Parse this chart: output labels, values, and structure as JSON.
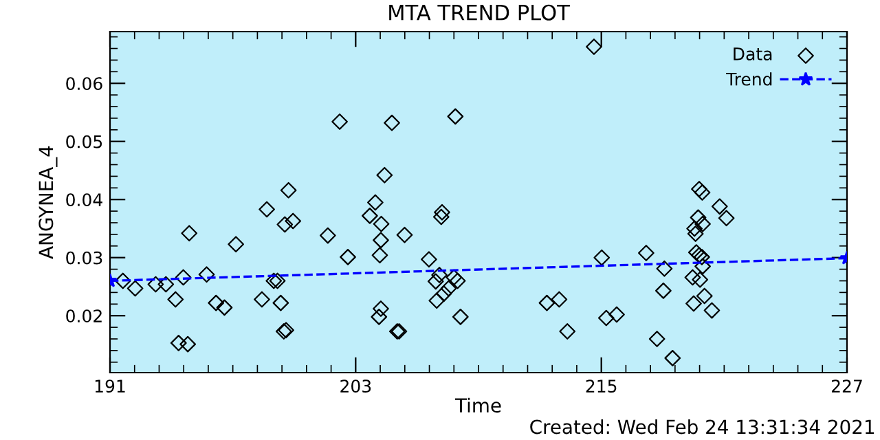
{
  "chart_data": {
    "type": "scatter",
    "title": "MTA TREND PLOT",
    "xlabel": "Time",
    "ylabel": "ANGYNEA_4",
    "xlim": [
      191,
      227
    ],
    "xticks": [
      191,
      203,
      215,
      227
    ],
    "ylim": [
      0.0102,
      0.0689
    ],
    "yticks": [
      {
        "value": 0.02,
        "label": "0.02"
      },
      {
        "value": 0.03,
        "label": "0.03"
      },
      {
        "value": 0.04,
        "label": "0.04"
      },
      {
        "value": 0.05,
        "label": "0.05"
      },
      {
        "value": 0.06,
        "label": "0.06"
      }
    ],
    "grid": false,
    "legend": "top right",
    "series": [
      {
        "name": "Data",
        "marker": "diamond",
        "color": "#000000",
        "x": [
          191.63,
          192.23,
          193.23,
          193.73,
          194.2,
          194.35,
          194.58,
          194.8,
          194.87,
          195.72,
          196.18,
          196.59,
          197.15,
          198.42,
          198.66,
          199.0,
          199.18,
          199.34,
          199.49,
          199.6,
          199.54,
          199.72,
          199.94,
          201.64,
          202.22,
          202.62,
          203.69,
          203.96,
          204.14,
          204.23,
          204.18,
          204.23,
          204.25,
          204.41,
          204.77,
          205.03,
          205.12,
          205.39,
          206.58,
          206.91,
          206.96,
          207.09,
          207.18,
          207.22,
          207.31,
          207.54,
          207.8,
          207.87,
          207.98,
          208.12,
          214.64,
          215.02,
          212.34,
          212.94,
          213.34,
          215.24,
          215.75,
          217.19,
          217.72,
          218.03,
          218.08,
          218.48,
          219.51,
          219.46,
          219.55,
          219.6,
          219.73,
          219.78,
          219.93,
          219.95,
          219.64,
          219.78,
          219.91,
          219.95,
          219.82,
          220.04,
          220.4,
          220.78,
          221.11
        ],
        "values": [
          0.026,
          0.0247,
          0.0254,
          0.0254,
          0.0228,
          0.0153,
          0.0266,
          0.0151,
          0.0342,
          0.0271,
          0.0222,
          0.0214,
          0.0323,
          0.0228,
          0.0383,
          0.026,
          0.026,
          0.0222,
          0.0173,
          0.0175,
          0.0357,
          0.0416,
          0.0363,
          0.0338,
          0.0534,
          0.0301,
          0.0372,
          0.0395,
          0.0198,
          0.0212,
          0.0304,
          0.033,
          0.0358,
          0.0442,
          0.0532,
          0.0173,
          0.0173,
          0.0339,
          0.0297,
          0.0259,
          0.0226,
          0.027,
          0.037,
          0.0378,
          0.0238,
          0.0247,
          0.0266,
          0.0543,
          0.026,
          0.0198,
          0.0663,
          0.03,
          0.0222,
          0.0228,
          0.0173,
          0.0196,
          0.0202,
          0.0308,
          0.016,
          0.0243,
          0.0281,
          0.0127,
          0.0221,
          0.0266,
          0.035,
          0.0341,
          0.0369,
          0.0418,
          0.0412,
          0.0358,
          0.0309,
          0.0304,
          0.0301,
          0.0285,
          0.0262,
          0.0234,
          0.0209,
          0.0388,
          0.0368
        ]
      },
      {
        "name": "Trend",
        "type": "line",
        "marker": "star",
        "line_style": "dashed",
        "color": "#0000ff",
        "x": [
          191,
          227
        ],
        "values": [
          0.026,
          0.0299
        ]
      }
    ],
    "annotations": [
      "Created: Wed Feb 24 13:31:34 2021"
    ]
  }
}
